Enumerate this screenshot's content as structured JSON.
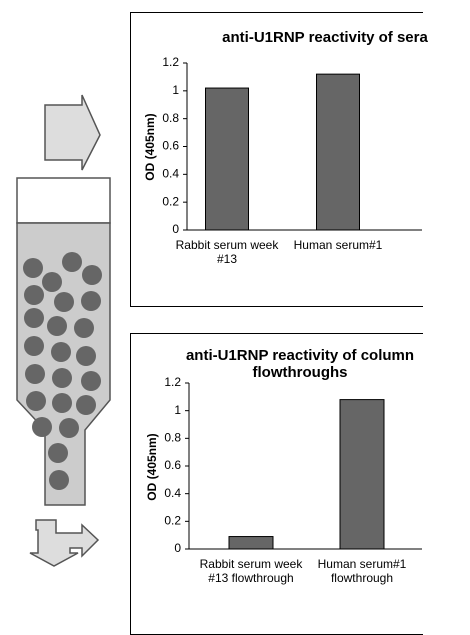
{
  "chart_data": [
    {
      "type": "bar",
      "title": "anti-U1RNP reactivity of sera",
      "y_label": "OD (405nm)",
      "categories": [
        "Rabbit serum week #13",
        "Human serum#1"
      ],
      "values": [
        1.02,
        1.12
      ],
      "color": "#666666",
      "ylim": [
        0,
        1.2
      ],
      "yticks": [
        0,
        0.2,
        0.4,
        0.6,
        0.8,
        1,
        1.2
      ]
    },
    {
      "type": "bar",
      "title": "anti-U1RNP reactivity of column flowthroughs",
      "y_label": "OD (405nm)",
      "categories": [
        "Rabbit serum week #13 flowthrough",
        "Human serum#1 flowthrough"
      ],
      "values": [
        0.09,
        1.08
      ],
      "color": "#666666",
      "ylim": [
        0,
        1.2
      ],
      "yticks": [
        0,
        0.2,
        0.4,
        0.6,
        0.8,
        1,
        1.2
      ]
    }
  ]
}
